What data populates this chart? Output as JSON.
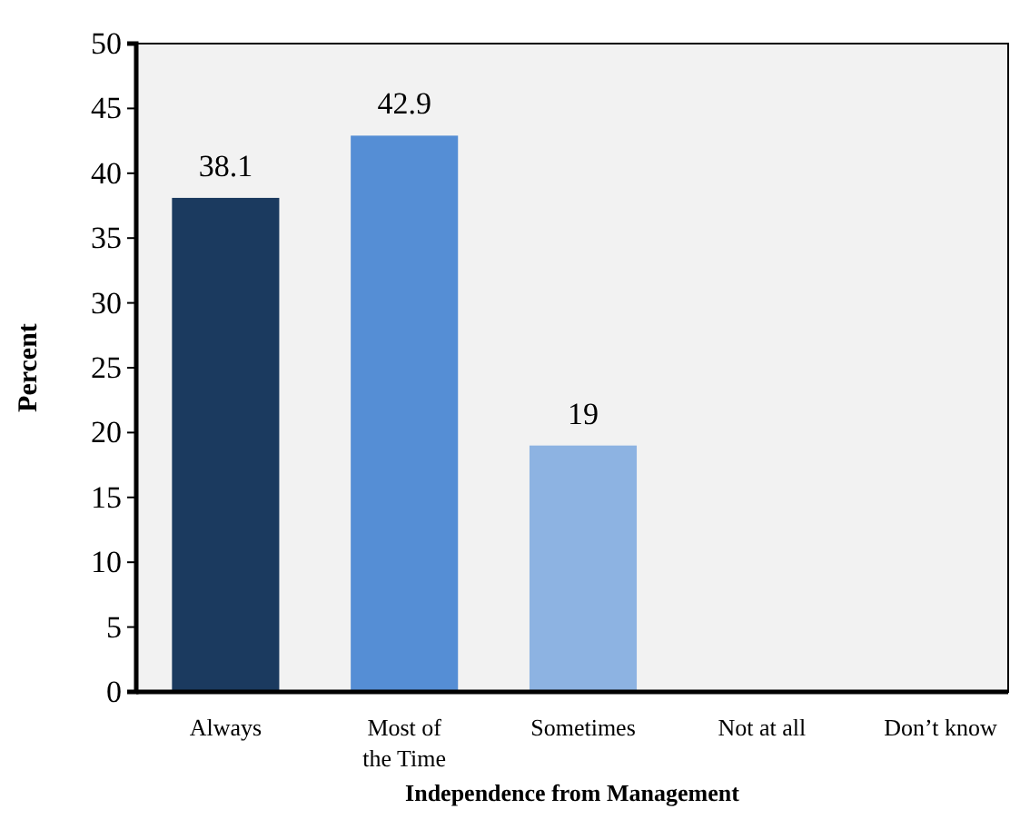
{
  "chart_data": {
    "type": "bar",
    "xlabel": "Independence from Management",
    "ylabel": "Percent",
    "categories": [
      "Always",
      "Most of the Time",
      "Sometimes",
      "Not at all",
      "Don’t know"
    ],
    "values": [
      38.1,
      42.9,
      19,
      null,
      null
    ],
    "colors": [
      "#1b3a5f",
      "#558ed5",
      "#8db3e2",
      null,
      null
    ],
    "ylim": [
      0,
      50
    ],
    "yticks": [
      0,
      5,
      10,
      15,
      20,
      25,
      30,
      35,
      40,
      45,
      50
    ],
    "data_labels": true,
    "grid": false
  }
}
